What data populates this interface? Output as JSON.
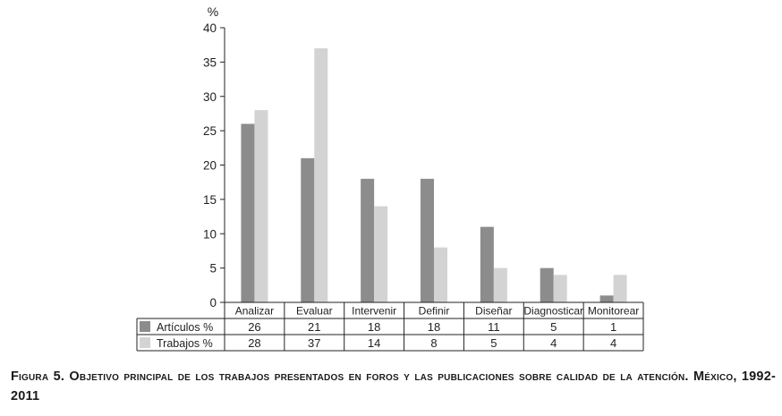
{
  "chart_data": {
    "type": "bar",
    "ylabel": "%",
    "ylim": [
      0,
      40
    ],
    "yticks": [
      0,
      5,
      10,
      15,
      20,
      25,
      30,
      35,
      40
    ],
    "categories": [
      "Analizar",
      "Evaluar",
      "Intervenir",
      "Definir",
      "Diseñar",
      "Diagnosticar",
      "Monitorear"
    ],
    "series": [
      {
        "name": "Artículos %",
        "color": "#8c8c8c",
        "values": [
          26,
          21,
          18,
          18,
          11,
          5,
          1
        ]
      },
      {
        "name": "Trabajos %",
        "color": "#d3d3d3",
        "values": [
          28,
          37,
          14,
          8,
          5,
          4,
          4
        ]
      }
    ],
    "table_values": [
      [
        "26",
        "21",
        "18",
        "18",
        "11",
        "5",
        "1"
      ],
      [
        "28",
        "37",
        "14",
        "8",
        "5",
        "4",
        "4"
      ]
    ],
    "grid": false,
    "legend": "data-table-below"
  },
  "caption": "Figura 5. Objetivo principal de los trabajos presentados en foros y las publicaciones sobre calidad de la atención. México, 1992-2011"
}
